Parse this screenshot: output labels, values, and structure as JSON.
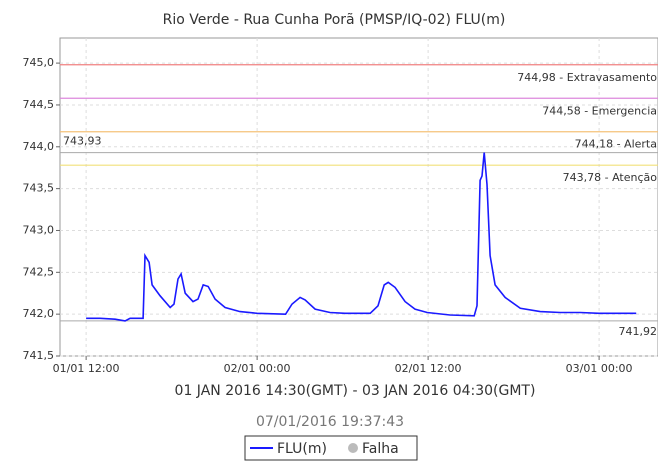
{
  "chart_data": {
    "type": "line",
    "title": "Rio Verde - Rua Cunha Porã (PMSP/IQ-02) FLU(m)",
    "subtitle": "01 JAN 2016 14:30(GMT) - 03 JAN 2016 04:30(GMT)",
    "timestamp": "07/01/2016 19:37:43",
    "x": [
      "2016-01-01T12:00",
      "2016-01-01T12:59",
      "2016-01-01T14:02",
      "2016-01-01T14:44",
      "2016-01-01T15:05",
      "2016-01-01T16:00",
      "2016-01-01T16:08",
      "2016-01-01T16:25",
      "2016-01-01T16:38",
      "2016-01-01T17:11",
      "2016-01-01T17:54",
      "2016-01-01T18:10",
      "2016-01-01T18:27",
      "2016-01-01T18:40",
      "2016-01-01T18:57",
      "2016-01-01T19:30",
      "2016-01-01T19:51",
      "2016-01-01T20:13",
      "2016-01-01T20:34",
      "2016-01-01T21:03",
      "2016-01-01T21:45",
      "2016-01-01T22:48",
      "2016-01-02T00:00",
      "2016-01-02T02:00",
      "2016-01-02T02:27",
      "2016-01-02T03:01",
      "2016-01-02T03:22",
      "2016-01-02T04:04",
      "2016-01-02T05:07",
      "2016-01-02T06:10",
      "2016-01-02T07:56",
      "2016-01-02T08:29",
      "2016-01-02T08:55",
      "2016-01-02T09:12",
      "2016-01-02T09:41",
      "2016-01-02T10:23",
      "2016-01-02T11:05",
      "2016-01-02T11:56",
      "2016-01-02T13:32",
      "2016-01-02T15:14",
      "2016-01-02T15:26",
      "2016-01-02T15:39",
      "2016-01-02T15:47",
      "2016-01-02T15:56",
      "2016-01-02T16:08",
      "2016-01-02T16:21",
      "2016-01-02T16:42",
      "2016-01-02T17:24",
      "2016-01-02T18:28",
      "2016-01-02T19:52",
      "2016-01-02T21:16",
      "2016-01-02T22:40",
      "2016-01-03T00:00",
      "2016-01-03T02:36"
    ],
    "series": [
      {
        "name": "FLU(m)",
        "color": "#1a1aff",
        "values": [
          741.95,
          741.95,
          741.94,
          741.92,
          741.95,
          741.95,
          742.7,
          742.62,
          742.35,
          742.22,
          742.08,
          742.12,
          742.42,
          742.48,
          742.25,
          742.15,
          742.18,
          742.35,
          742.33,
          742.18,
          742.08,
          742.03,
          742.01,
          742.0,
          742.12,
          742.2,
          742.17,
          742.06,
          742.02,
          742.01,
          742.01,
          742.1,
          742.35,
          742.38,
          742.32,
          742.15,
          742.06,
          742.02,
          741.99,
          741.98,
          742.1,
          743.6,
          743.65,
          743.93,
          743.55,
          742.7,
          742.35,
          742.2,
          742.07,
          742.03,
          742.02,
          742.02,
          742.01,
          742.01
        ]
      }
    ],
    "legend_extra": {
      "name": "Falha",
      "color": "#bbbbbb"
    },
    "thresholds": [
      {
        "value": 744.98,
        "label": "744,98 - Extravasamento",
        "color": "#f08080"
      },
      {
        "value": 744.58,
        "label": "744,58 - Emergencia",
        "color": "#dd88dd"
      },
      {
        "value": 744.18,
        "label": "744,18 - Alerta",
        "color": "#f5c27a"
      },
      {
        "value": 743.78,
        "label": "743,78 - Atenção",
        "color": "#f2e07a"
      }
    ],
    "max_line": {
      "value": 743.93,
      "label": "743,93",
      "color": "#aaaaaa"
    },
    "min_line": {
      "value": 741.92,
      "label": "741,92",
      "color": "#aaaaaa"
    },
    "xlim": [
      "2016-01-01T10:10",
      "2016-01-03T04:08"
    ],
    "xticks": [
      {
        "value": "2016-01-01T12:00",
        "label": "01/01 12:00"
      },
      {
        "value": "2016-01-02T00:00",
        "label": "02/01 00:00"
      },
      {
        "value": "2016-01-02T12:00",
        "label": "02/01 12:00"
      },
      {
        "value": "2016-01-03T00:00",
        "label": "03/01 00:00"
      }
    ],
    "ylim": [
      741.5,
      745.3
    ],
    "yticks": [
      {
        "value": 741.5,
        "label": "741,5"
      },
      {
        "value": 742,
        "label": "742,0"
      },
      {
        "value": 742.5,
        "label": "742,5"
      },
      {
        "value": 743,
        "label": "743,0"
      },
      {
        "value": 743.5,
        "label": "743,5"
      },
      {
        "value": 744,
        "label": "744,0"
      },
      {
        "value": 744.5,
        "label": "744,5"
      },
      {
        "value": 745,
        "label": "745,0"
      }
    ],
    "grid": true
  }
}
